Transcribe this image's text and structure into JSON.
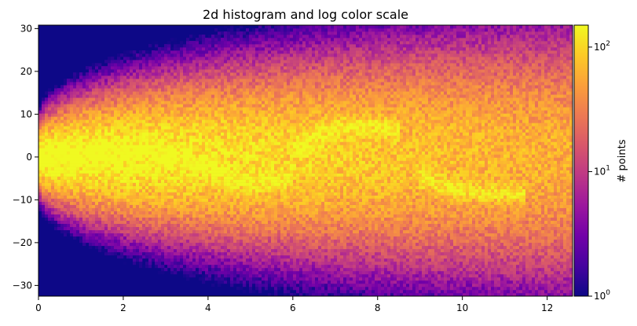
{
  "chart_data": {
    "type": "heatmap",
    "title": "2d histogram and log color scale",
    "xlabel": "",
    "ylabel": "",
    "xlim": [
      0,
      12.6
    ],
    "ylim": [
      -32.5,
      30.8
    ],
    "x_ticks": [
      "0",
      "2",
      "4",
      "6",
      "8",
      "10",
      "12"
    ],
    "y_ticks": [
      "30",
      "20",
      "10",
      "0",
      "−10",
      "−20",
      "−30"
    ],
    "colorbar": {
      "label": "# points",
      "scale": "log",
      "range": [
        1,
        150
      ],
      "ticks": [
        {
          "base": "10",
          "exp": "0"
        },
        {
          "base": "10",
          "exp": "1"
        },
        {
          "base": "10",
          "exp": "2"
        }
      ]
    },
    "colormap": [
      "#0d0887",
      "#46039f",
      "#7201a8",
      "#9c179e",
      "#bd3786",
      "#d8576b",
      "#ed7953",
      "#fb9f3a",
      "#fdca26",
      "#f0f921"
    ],
    "background_color": "#0d0887",
    "density_description": {
      "center_y": 0,
      "spread_at_x0": 2.5,
      "spread_at_xmax": 22,
      "bright_paths": [
        {
          "x": [
            0,
            2,
            3,
            5,
            6
          ],
          "y": [
            0,
            2,
            1,
            -6,
            -5
          ]
        },
        {
          "x": [
            6,
            7,
            8,
            8.5
          ],
          "y": [
            2,
            7,
            7.5,
            6
          ]
        },
        {
          "x": [
            9,
            10,
            11.5
          ],
          "y": [
            -5,
            -8,
            -9
          ]
        }
      ]
    }
  }
}
